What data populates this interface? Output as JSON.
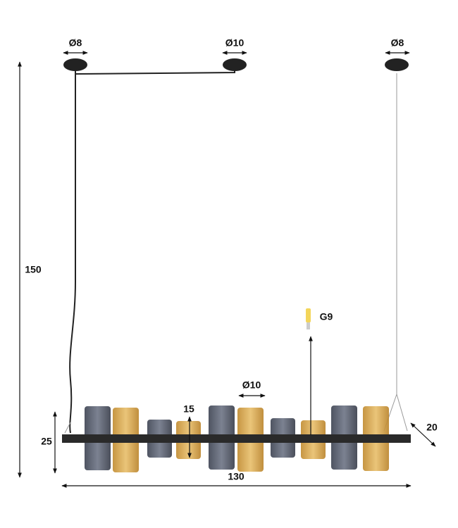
{
  "canopies": {
    "left": "Ø8",
    "middle": "Ø10",
    "right": "Ø8"
  },
  "dimensions": {
    "height": "150",
    "bar_height": "25",
    "shade_height": "15",
    "shade_diameter": "Ø10",
    "width": "130",
    "depth": "20"
  },
  "bulb": "G9"
}
